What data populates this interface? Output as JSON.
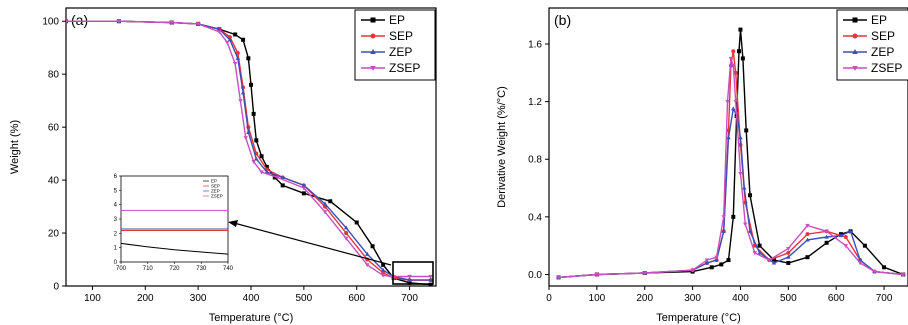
{
  "colors": {
    "EP": "#000000",
    "SEP": "#e8333a",
    "ZEP": "#3d4fb5",
    "ZSEP": "#c84fc0"
  },
  "chart_data": [
    {
      "type": "line",
      "panel_label": "(a)",
      "xlabel": "Temperature (°C)",
      "ylabel": "Weight (%)",
      "xlim": [
        50,
        750
      ],
      "ylim": [
        0,
        105
      ],
      "xticks": [
        100,
        200,
        300,
        400,
        500,
        600,
        700
      ],
      "yticks": [
        0,
        20,
        40,
        60,
        80,
        100
      ],
      "legend_position": "top-right",
      "series": [
        {
          "name": "EP",
          "marker": "square",
          "x": [
            50,
            150,
            250,
            300,
            340,
            370,
            385,
            395,
            400,
            405,
            410,
            420,
            430,
            445,
            460,
            500,
            550,
            600,
            630,
            650,
            670,
            700,
            740
          ],
          "y": [
            100,
            100,
            99.5,
            99,
            97,
            95,
            93,
            86,
            76,
            65,
            55,
            49,
            45,
            41,
            38,
            35,
            32,
            24,
            15,
            8,
            3,
            1.2,
            0.5
          ]
        },
        {
          "name": "SEP",
          "marker": "circle",
          "x": [
            50,
            150,
            250,
            300,
            340,
            360,
            375,
            385,
            395,
            410,
            430,
            460,
            500,
            540,
            580,
            620,
            650,
            670,
            700,
            740
          ],
          "y": [
            100,
            100,
            99.5,
            99,
            97,
            94,
            88,
            75,
            60,
            50,
            44,
            41,
            38,
            30,
            20,
            10,
            5,
            3,
            2.2,
            2.2
          ]
        },
        {
          "name": "ZEP",
          "marker": "triangle-up",
          "x": [
            50,
            150,
            250,
            300,
            340,
            360,
            375,
            385,
            395,
            410,
            430,
            460,
            500,
            540,
            580,
            620,
            650,
            670,
            700,
            740
          ],
          "y": [
            100,
            100,
            99.5,
            99,
            97,
            93,
            86,
            73,
            58,
            48,
            43,
            41,
            38,
            31,
            22,
            12,
            6,
            3.5,
            2.3,
            2.3
          ]
        },
        {
          "name": "ZSEP",
          "marker": "triangle-down",
          "x": [
            50,
            150,
            250,
            300,
            340,
            355,
            370,
            380,
            390,
            405,
            420,
            450,
            500,
            540,
            580,
            620,
            650,
            670,
            700,
            740
          ],
          "y": [
            100,
            100,
            99.5,
            99,
            96,
            92,
            84,
            70,
            56,
            47,
            43,
            41,
            37,
            28,
            18,
            8,
            4,
            3.6,
            3.6,
            3.6
          ]
        }
      ],
      "inset": {
        "xlim": [
          700,
          740
        ],
        "ylim": [
          0,
          6
        ],
        "xticks": [
          700,
          710,
          720,
          730,
          740
        ],
        "yticks": [
          0,
          1,
          2,
          3,
          4,
          5,
          6
        ],
        "legend_position": "top-right",
        "series": [
          {
            "name": "EP",
            "x": [
              700,
              710,
              720,
              730,
              740
            ],
            "y": [
              1.3,
              1.05,
              0.85,
              0.7,
              0.55
            ]
          },
          {
            "name": "SEP",
            "x": [
              700,
              740
            ],
            "y": [
              2.2,
              2.2
            ]
          },
          {
            "name": "ZEP",
            "x": [
              700,
              740
            ],
            "y": [
              2.3,
              2.3
            ]
          },
          {
            "name": "ZSEP",
            "x": [
              700,
              740
            ],
            "y": [
              3.6,
              3.6
            ]
          }
        ]
      }
    },
    {
      "type": "line",
      "panel_label": "(b)",
      "xlabel": "Temperature (°C)",
      "ylabel": "Derivative Weight (%/°C)",
      "xlim": [
        0,
        750
      ],
      "ylim": [
        -0.08,
        1.85
      ],
      "xticks": [
        0,
        100,
        200,
        300,
        400,
        500,
        600,
        700
      ],
      "yticks": [
        0.0,
        0.4,
        0.8,
        1.2,
        1.6
      ],
      "legend_position": "top-right",
      "series": [
        {
          "name": "EP",
          "marker": "square",
          "x": [
            20,
            100,
            200,
            300,
            340,
            360,
            375,
            385,
            392,
            397,
            400,
            405,
            412,
            420,
            440,
            470,
            500,
            540,
            580,
            610,
            630,
            660,
            700,
            740
          ],
          "y": [
            -0.02,
            0.0,
            0.01,
            0.02,
            0.05,
            0.07,
            0.1,
            0.4,
            1.1,
            1.55,
            1.7,
            1.5,
            1.0,
            0.55,
            0.2,
            0.1,
            0.08,
            0.12,
            0.22,
            0.28,
            0.3,
            0.2,
            0.05,
            0.0
          ]
        },
        {
          "name": "SEP",
          "marker": "circle",
          "x": [
            20,
            100,
            200,
            300,
            330,
            350,
            365,
            375,
            380,
            385,
            390,
            400,
            410,
            430,
            460,
            500,
            540,
            580,
            620,
            650,
            680,
            740
          ],
          "y": [
            -0.02,
            0.0,
            0.01,
            0.03,
            0.08,
            0.1,
            0.3,
            1.0,
            1.45,
            1.55,
            1.4,
            0.9,
            0.5,
            0.2,
            0.1,
            0.15,
            0.28,
            0.3,
            0.26,
            0.1,
            0.02,
            0.0
          ]
        },
        {
          "name": "ZEP",
          "marker": "triangle-up",
          "x": [
            20,
            100,
            200,
            300,
            330,
            350,
            365,
            375,
            385,
            393,
            400,
            408,
            420,
            440,
            470,
            500,
            540,
            580,
            610,
            630,
            650,
            680,
            740
          ],
          "y": [
            -0.02,
            0.0,
            0.01,
            0.03,
            0.08,
            0.1,
            0.3,
            0.95,
            1.15,
            1.1,
            0.95,
            0.6,
            0.3,
            0.15,
            0.08,
            0.12,
            0.24,
            0.26,
            0.27,
            0.3,
            0.1,
            0.02,
            0.0
          ]
        },
        {
          "name": "ZSEP",
          "marker": "triangle-down",
          "x": [
            20,
            100,
            200,
            300,
            330,
            350,
            365,
            373,
            380,
            385,
            390,
            400,
            410,
            430,
            460,
            500,
            540,
            580,
            620,
            650,
            680,
            740
          ],
          "y": [
            -0.02,
            0.0,
            0.01,
            0.03,
            0.1,
            0.12,
            0.4,
            1.2,
            1.5,
            1.45,
            1.2,
            0.7,
            0.35,
            0.15,
            0.1,
            0.18,
            0.34,
            0.3,
            0.2,
            0.08,
            0.02,
            0.0
          ]
        }
      ]
    }
  ]
}
